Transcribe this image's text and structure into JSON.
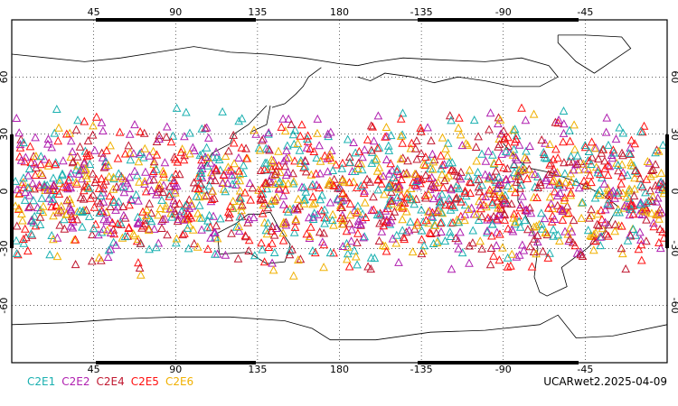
{
  "map": {
    "projection": "cylindrical-equidistant",
    "center_longitude": 180,
    "lon_range": [
      0,
      360
    ],
    "lat_range": [
      -90,
      90
    ],
    "top_lon_labels": [
      "45",
      "90",
      "135",
      "180",
      "-135",
      "-90",
      "-45"
    ],
    "bottom_lon_labels": [
      "45",
      "90",
      "135",
      "180",
      "-135",
      "-90",
      "-45"
    ],
    "lat_labels": [
      "60",
      "30",
      "0",
      "-30",
      "-60"
    ],
    "grid": "dotted",
    "marker_shape": "open-triangle",
    "observation_band_lat": [
      -45,
      45
    ]
  },
  "legend": {
    "entries": [
      {
        "label": "C2E1",
        "color": "#1ab0b0"
      },
      {
        "label": "C2E2",
        "color": "#b020b0"
      },
      {
        "label": "C2E4",
        "color": "#c01830"
      },
      {
        "label": "C2E5",
        "color": "#ff1010"
      },
      {
        "label": "C2E6",
        "color": "#f0b000"
      }
    ]
  },
  "stamp": "UCARwet2.2025-04-09"
}
